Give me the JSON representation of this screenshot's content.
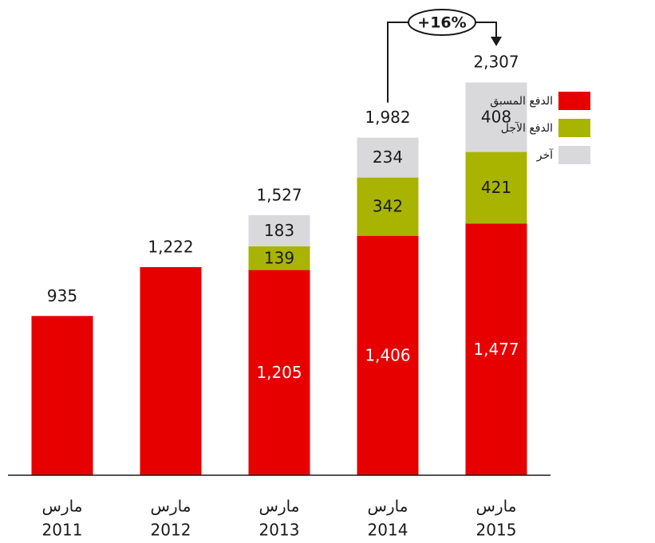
{
  "chart_data": {
    "type": "stacked_bar",
    "categories": [
      [
        "مارس",
        "2011"
      ],
      [
        "مارس",
        "2012"
      ],
      [
        "مارس",
        "2013"
      ],
      [
        "مارس",
        "2014"
      ],
      [
        "مارس",
        "2015"
      ]
    ],
    "series": [
      {
        "name": "الدفع المسبق",
        "color": "#e60000",
        "values": [
          935,
          1222,
          1205,
          1406,
          1477
        ],
        "value_labels": [
          null,
          null,
          "1,205",
          "1,406",
          "1,477"
        ]
      },
      {
        "name": "الدفع الآجل",
        "color": "#a8b400",
        "values": [
          null,
          null,
          139,
          342,
          421
        ]
      },
      {
        "name": "آخر",
        "color": "#d9d9db",
        "values": [
          null,
          null,
          183,
          234,
          408
        ]
      }
    ],
    "totals": [
      935,
      1222,
      1527,
      1982,
      2307
    ],
    "total_labels": [
      "935",
      "1,222",
      "1,527",
      "1,982",
      "2,307"
    ],
    "annotation": "+16%",
    "ylim": [
      0,
      2500
    ],
    "legend": "right"
  }
}
